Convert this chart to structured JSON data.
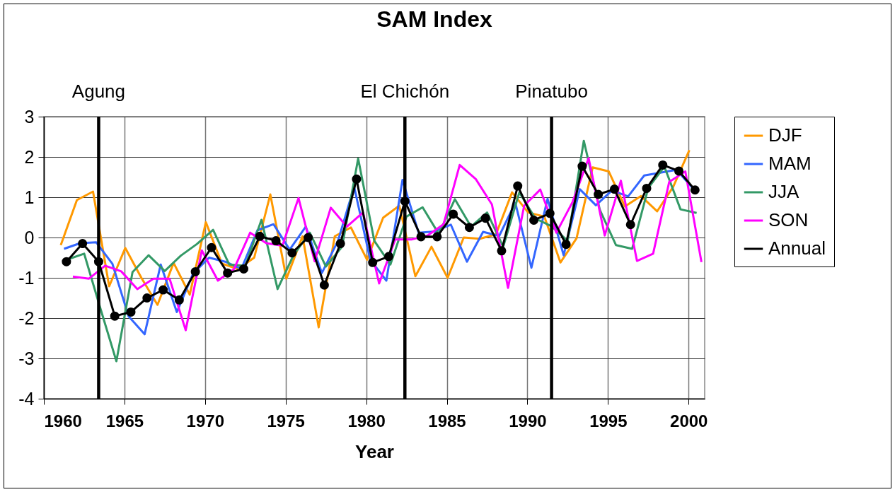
{
  "chart_data": {
    "type": "line",
    "title": "SAM Index",
    "xlabel": "Year",
    "xlim": [
      1960,
      2001
    ],
    "xticks": [
      1960,
      1965,
      1970,
      1975,
      1980,
      1985,
      1990,
      1995,
      2000
    ],
    "ylim": [
      -4,
      3
    ],
    "yticks": [
      -4,
      -3,
      -2,
      -1,
      0,
      1,
      2,
      3
    ],
    "grid": true,
    "legend": "right",
    "marker": "none",
    "ref_lines": [
      {
        "axis": "x",
        "value": 1963.4,
        "label": "Agung",
        "color": "#000000"
      },
      {
        "axis": "x",
        "value": 1982.4,
        "label": "El Chichón",
        "color": "#000000"
      },
      {
        "axis": "x",
        "value": 1991.5,
        "label": "Pinatubo",
        "color": "#000000"
      }
    ],
    "series": [
      {
        "name": "DJF",
        "color": "#ff9900",
        "x": [
          1961.05,
          1962.05,
          1963.05,
          1964.05,
          1965.05,
          1966.05,
          1967.05,
          1968.05,
          1969.05,
          1970.05,
          1971.05,
          1972.05,
          1973.05,
          1974.05,
          1975.05,
          1976.05,
          1977.05,
          1978.05,
          1979.05,
          1980.05,
          1981.05,
          1982.05,
          1983.05,
          1984.05,
          1985.05,
          1986.05,
          1987.05,
          1988.05,
          1989.05,
          1990.05,
          1991.05,
          1992.05,
          1993.05,
          1994.05,
          1995.05,
          1996.05,
          1997.05,
          1998.05,
          1999.05,
          2000.05
        ],
        "values": [
          -0.19,
          0.93,
          1.14,
          -1.21,
          -0.26,
          -1.0,
          -1.67,
          -0.63,
          -1.42,
          0.38,
          -0.65,
          -0.78,
          -0.5,
          1.07,
          -1.02,
          0.03,
          -2.23,
          0.03,
          0.25,
          -0.55,
          0.49,
          0.79,
          -0.96,
          -0.23,
          -1.0,
          0.0,
          -0.03,
          0.08,
          1.12,
          0.62,
          0.52,
          -0.62,
          -0.02,
          1.74,
          1.64,
          0.77,
          1.03,
          0.65,
          1.26,
          2.17
        ]
      },
      {
        "name": "MAM",
        "color": "#3366ff",
        "x": [
          1961.25,
          1962.25,
          1963.25,
          1964.25,
          1965.25,
          1966.25,
          1967.25,
          1968.25,
          1969.25,
          1970.25,
          1971.25,
          1972.25,
          1973.25,
          1974.25,
          1975.25,
          1976.25,
          1977.25,
          1978.25,
          1979.25,
          1980.25,
          1981.25,
          1982.25,
          1983.25,
          1984.25,
          1985.25,
          1986.25,
          1987.25,
          1988.25,
          1989.25,
          1990.25,
          1991.25,
          1992.25,
          1993.25,
          1994.25,
          1995.25,
          1996.25,
          1997.25,
          1998.25,
          1999.25,
          2000.25
        ],
        "values": [
          -0.28,
          -0.14,
          -0.12,
          -0.65,
          -1.95,
          -2.4,
          -0.67,
          -1.85,
          -0.9,
          -0.5,
          -0.6,
          -0.78,
          0.18,
          0.33,
          -0.3,
          0.27,
          -0.88,
          -0.08,
          1.26,
          -0.55,
          -1.07,
          1.43,
          0.12,
          0.15,
          0.32,
          -0.6,
          0.14,
          0.04,
          0.86,
          -0.75,
          0.96,
          -0.44,
          1.2,
          0.8,
          1.17,
          1.02,
          1.54,
          1.61,
          1.68,
          1.23
        ]
      },
      {
        "name": "JJA",
        "color": "#339966",
        "x": [
          1961.5,
          1962.5,
          1963.5,
          1964.5,
          1965.5,
          1966.5,
          1967.5,
          1968.5,
          1969.5,
          1970.5,
          1971.5,
          1972.5,
          1973.5,
          1974.5,
          1975.5,
          1976.5,
          1977.5,
          1978.5,
          1979.5,
          1980.5,
          1981.5,
          1982.5,
          1983.5,
          1984.5,
          1985.5,
          1986.5,
          1987.5,
          1988.5,
          1989.5,
          1990.5,
          1991.5,
          1992.5,
          1993.5,
          1994.5,
          1995.5,
          1996.5,
          1997.5,
          1998.5,
          1999.5,
          2000.5
        ],
        "values": [
          -0.54,
          -0.4,
          -1.75,
          -3.07,
          -0.86,
          -0.44,
          -0.83,
          -0.45,
          -0.16,
          0.19,
          -0.67,
          -0.7,
          0.44,
          -1.28,
          -0.43,
          0.12,
          -0.72,
          -0.23,
          1.96,
          -0.08,
          -0.67,
          0.52,
          0.75,
          0.09,
          0.95,
          0.27,
          0.62,
          -0.23,
          1.12,
          0.47,
          0.28,
          -0.08,
          2.4,
          0.68,
          -0.19,
          -0.28,
          1.23,
          1.76,
          0.7,
          0.61
        ]
      },
      {
        "name": "SON",
        "color": "#ff00ff",
        "x": [
          1961.8,
          1962.8,
          1963.8,
          1964.8,
          1965.8,
          1966.8,
          1967.8,
          1968.8,
          1969.8,
          1970.8,
          1971.8,
          1972.8,
          1973.8,
          1974.8,
          1975.8,
          1976.8,
          1977.8,
          1978.8,
          1979.8,
          1980.8,
          1981.8,
          1982.8,
          1983.8,
          1984.8,
          1985.8,
          1986.8,
          1987.8,
          1988.8,
          1989.8,
          1990.8,
          1991.8,
          1992.8,
          1993.8,
          1994.8,
          1995.8,
          1996.8,
          1997.8,
          1998.8,
          1999.8,
          2000.8
        ],
        "values": [
          -0.97,
          -1.02,
          -0.7,
          -0.84,
          -1.28,
          -1.02,
          -1.02,
          -2.3,
          -0.32,
          -1.07,
          -0.78,
          0.12,
          -0.14,
          -0.2,
          0.98,
          -0.59,
          0.74,
          0.27,
          0.62,
          -1.14,
          -0.05,
          -0.05,
          0.05,
          0.33,
          1.8,
          1.45,
          0.82,
          -1.25,
          0.79,
          1.19,
          0.12,
          0.88,
          1.97,
          0.05,
          1.41,
          -0.58,
          -0.4,
          1.38,
          1.64,
          -0.61
        ]
      },
      {
        "name": "Annual",
        "color": "#000000",
        "marker": "circle",
        "x": [
          1961.4,
          1962.4,
          1963.4,
          1964.4,
          1965.4,
          1966.4,
          1967.4,
          1968.4,
          1969.4,
          1970.4,
          1971.4,
          1972.4,
          1973.4,
          1974.4,
          1975.4,
          1976.4,
          1977.4,
          1978.4,
          1979.4,
          1980.4,
          1981.4,
          1982.4,
          1983.4,
          1984.4,
          1985.4,
          1986.4,
          1987.4,
          1988.4,
          1989.4,
          1990.4,
          1991.4,
          1992.4,
          1993.4,
          1994.4,
          1995.4,
          1996.4,
          1997.4,
          1998.4,
          1999.4,
          2000.4
        ],
        "values": [
          -0.6,
          -0.15,
          -0.6,
          -1.95,
          -1.85,
          -1.5,
          -1.3,
          -1.55,
          -0.85,
          -0.25,
          -0.88,
          -0.78,
          0.03,
          -0.08,
          -0.38,
          0.0,
          -1.18,
          -0.15,
          1.45,
          -0.62,
          -0.47,
          0.9,
          0.02,
          0.02,
          0.58,
          0.25,
          0.48,
          -0.33,
          1.28,
          0.43,
          0.6,
          -0.17,
          1.77,
          1.07,
          1.2,
          0.32,
          1.22,
          1.8,
          1.65,
          1.18
        ]
      }
    ]
  }
}
